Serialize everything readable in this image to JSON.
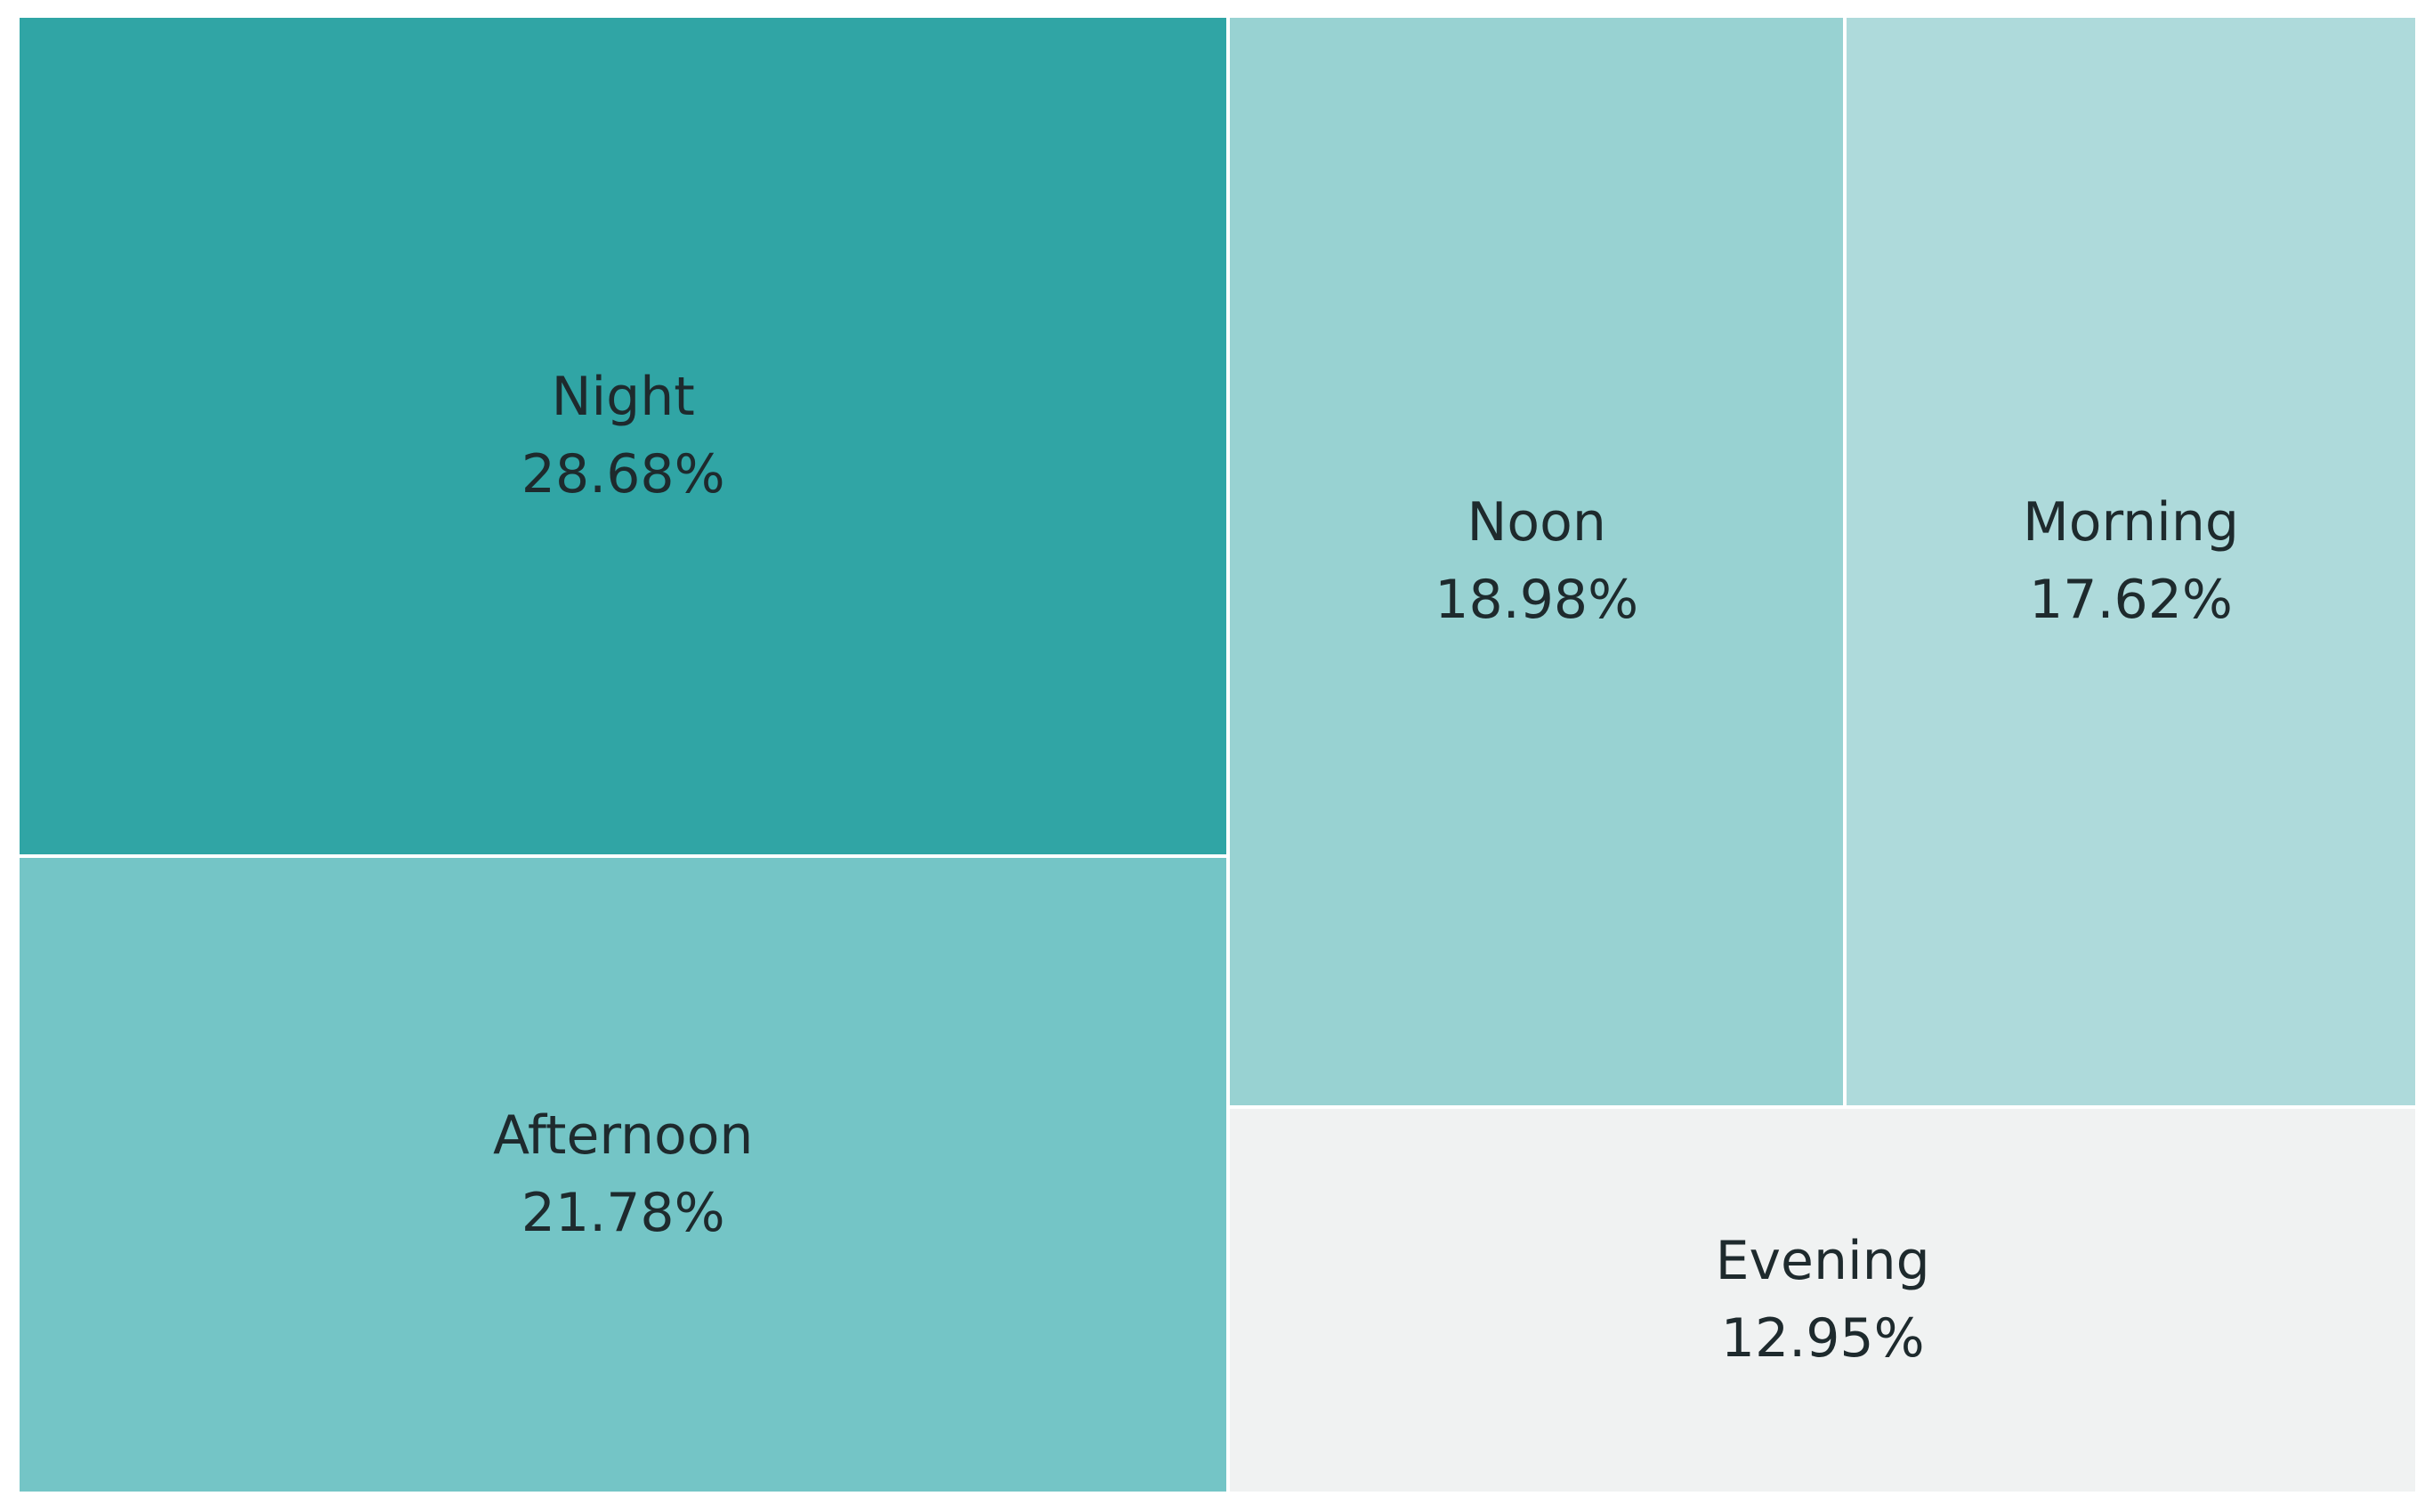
{
  "chart_data": {
    "type": "treemap",
    "title": "",
    "legend": "none",
    "layout_algorithm": "squarify",
    "background_color": "#ffffff",
    "cell_gap_color": "#ffffff",
    "label_text_color": "#1e2a2d",
    "value_format": "percent",
    "categories": [
      "Night",
      "Afternoon",
      "Noon",
      "Morning",
      "Evening"
    ],
    "values": [
      28.68,
      21.78,
      18.98,
      17.62,
      12.95
    ],
    "items": [
      {
        "label": "Night",
        "value": 28.68,
        "value_display": "28.68%",
        "color": "#30a5a5",
        "rect": {
          "x": 0,
          "y": 0,
          "w": 50.46,
          "h": 56.84
        }
      },
      {
        "label": "Afternoon",
        "value": 21.78,
        "value_display": "21.78%",
        "color": "#74c5c6",
        "rect": {
          "x": 0,
          "y": 56.84,
          "w": 50.46,
          "h": 43.16
        }
      },
      {
        "label": "Noon",
        "value": 18.98,
        "value_display": "18.98%",
        "color": "#98d2d2",
        "rect": {
          "x": 50.46,
          "y": 0,
          "w": 25.69,
          "h": 73.88
        }
      },
      {
        "label": "Morning",
        "value": 17.62,
        "value_display": "17.62%",
        "color": "#aedadb",
        "rect": {
          "x": 76.15,
          "y": 0,
          "w": 23.85,
          "h": 73.88
        }
      },
      {
        "label": "Evening",
        "value": 12.95,
        "value_display": "12.95%",
        "color": "#f0f2f2",
        "rect": {
          "x": 50.46,
          "y": 73.88,
          "w": 49.54,
          "h": 26.12
        }
      }
    ]
  }
}
